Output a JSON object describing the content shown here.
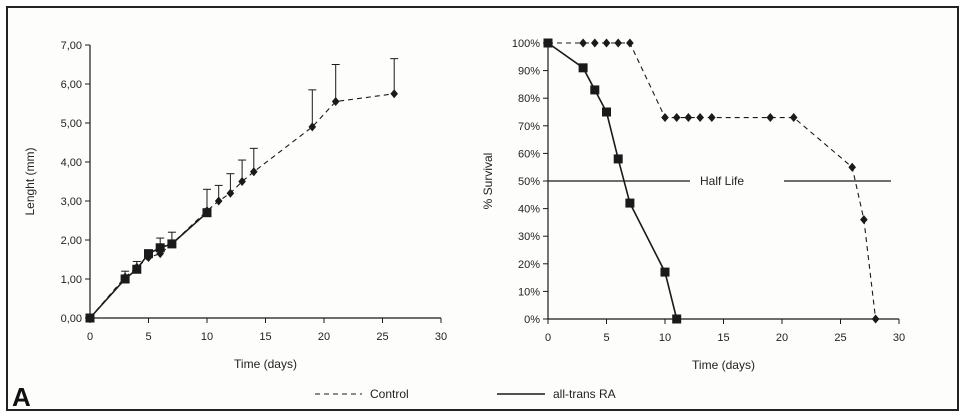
{
  "panel_label": "A",
  "legend": {
    "control_label": "Control",
    "ra_label": "all-trans RA"
  },
  "chart_data": [
    {
      "type": "line",
      "xlabel": "Time (days)",
      "ylabel": "Lenght (mm)",
      "xlim": [
        0,
        30
      ],
      "ylim": [
        0,
        7
      ],
      "x_ticks": [
        0,
        5,
        10,
        15,
        20,
        25,
        30
      ],
      "x_tick_labels": [
        "0",
        "5",
        "10",
        "15",
        "20",
        "25",
        "30"
      ],
      "y_ticks": [
        0,
        1,
        2,
        3,
        4,
        5,
        6,
        7
      ],
      "y_tick_labels": [
        "0,00",
        "1,00",
        "2,00",
        "3,00",
        "4,00",
        "5,00",
        "6,00",
        "7,00"
      ],
      "grid": false,
      "series": [
        {
          "name": "Control",
          "style": "dashed",
          "marker": "diamond",
          "x": [
            0,
            3,
            4,
            5,
            6,
            7,
            10,
            11,
            12,
            13,
            14,
            19,
            21,
            26
          ],
          "y": [
            0,
            1.05,
            1.3,
            1.55,
            1.65,
            1.9,
            2.75,
            3.0,
            3.2,
            3.5,
            3.75,
            4.9,
            5.55,
            5.75
          ],
          "error_upper": [
            0,
            1.2,
            1.45,
            1.7,
            2.05,
            2.2,
            3.3,
            3.4,
            3.7,
            4.05,
            4.35,
            5.85,
            6.5,
            6.65
          ]
        },
        {
          "name": "all-trans RA",
          "style": "solid",
          "marker": "square",
          "x": [
            0,
            3,
            4,
            5,
            6,
            7,
            10
          ],
          "y": [
            0,
            1.0,
            1.25,
            1.65,
            1.8,
            1.9,
            2.7
          ]
        }
      ]
    },
    {
      "type": "line",
      "xlabel": "Time (days)",
      "ylabel": "% Survival",
      "xlim": [
        0,
        30
      ],
      "ylim": [
        0,
        100
      ],
      "x_ticks": [
        0,
        5,
        10,
        15,
        20,
        25,
        30
      ],
      "x_tick_labels": [
        "0",
        "5",
        "10",
        "15",
        "20",
        "25",
        "30"
      ],
      "y_ticks": [
        0,
        10,
        20,
        30,
        40,
        50,
        60,
        70,
        80,
        90,
        100
      ],
      "y_tick_labels": [
        "0%",
        "10%",
        "20%",
        "30%",
        "40%",
        "50%",
        "60%",
        "70%",
        "80%",
        "90%",
        "100%"
      ],
      "grid": false,
      "reference_line": {
        "y": 50,
        "label": "Half Life"
      },
      "series": [
        {
          "name": "Control",
          "style": "dashed",
          "marker": "diamond",
          "x": [
            0,
            3,
            4,
            5,
            6,
            7,
            10,
            11,
            12,
            13,
            14,
            19,
            21,
            26,
            27,
            28
          ],
          "y": [
            100,
            100,
            100,
            100,
            100,
            100,
            73,
            73,
            73,
            73,
            73,
            73,
            73,
            55,
            36,
            0
          ]
        },
        {
          "name": "all-trans RA",
          "style": "solid",
          "marker": "square",
          "x": [
            0,
            3,
            4,
            5,
            6,
            7,
            10,
            11
          ],
          "y": [
            100,
            91,
            83,
            75,
            58,
            42,
            17,
            0
          ]
        }
      ]
    }
  ]
}
